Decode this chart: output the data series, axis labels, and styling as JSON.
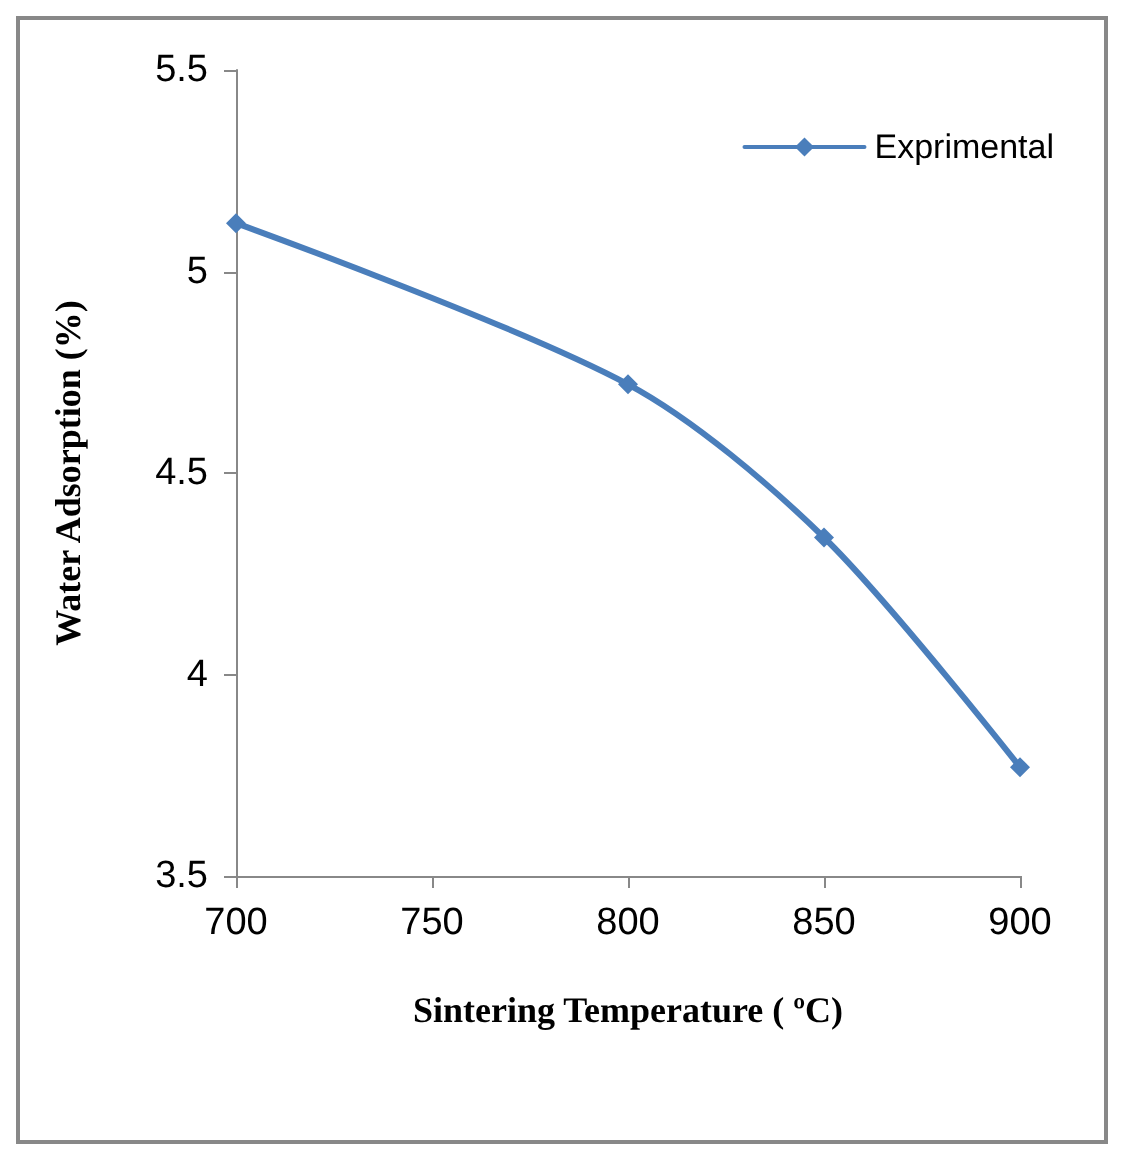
{
  "chart_data": {
    "type": "line",
    "xlabel": "Sintering Temperature ( ºC)",
    "ylabel": "Water Adsorption (%)",
    "x": [
      700,
      800,
      850,
      900
    ],
    "series": [
      {
        "name": "Exprimental",
        "color": "#4a7ebb",
        "values": [
          5.12,
          4.72,
          4.34,
          3.77
        ]
      }
    ],
    "xlim": [
      700,
      900
    ],
    "xticks": [
      700,
      750,
      800,
      850,
      900
    ],
    "ylim": [
      3.5,
      5.5
    ],
    "yticks": [
      3.5,
      4,
      4.5,
      5,
      5.5
    ],
    "grid": false,
    "legend": "top right",
    "marker": "diamond",
    "line_style": "solid"
  }
}
